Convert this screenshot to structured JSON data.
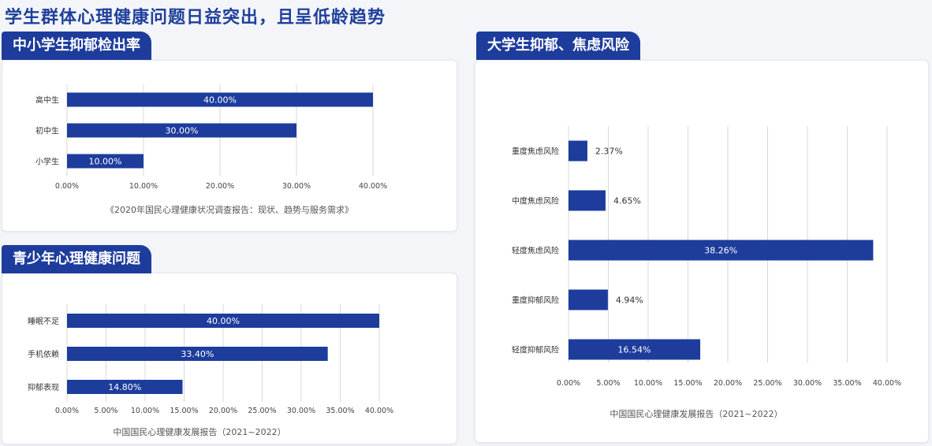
{
  "page": {
    "title": "学生群体心理健康问题日益突出，且呈低龄趋势",
    "colors": {
      "accent": "#1d3c9c",
      "bar": "#1d3c9c",
      "bar_label": "#ffffff",
      "text": "#333333",
      "grid": "#d9d9d9"
    }
  },
  "panels": [
    {
      "title": "中小学生抑郁检出率",
      "source": "《2020年国民心理健康状况调查报告：现状、趋势与服务需求》"
    },
    {
      "title": "青少年心理健康问题",
      "source": "中国国民心理健康发展报告（2021~2022）"
    },
    {
      "title": "大学生抑郁、焦虑风险",
      "source": "中国国民心理健康发展报告（2021~2022）"
    }
  ],
  "chart_data": [
    {
      "type": "bar",
      "orientation": "horizontal",
      "categories": [
        "高中生",
        "初中生",
        "小学生"
      ],
      "values": [
        40.0,
        30.0,
        10.0
      ],
      "value_labels": [
        "40.00%",
        "30.00%",
        "10.00%"
      ],
      "xlim": [
        0,
        40
      ],
      "xticks": [
        "0.00%",
        "10.00%",
        "20.00%",
        "30.00%",
        "40.00%"
      ],
      "grid": true
    },
    {
      "type": "bar",
      "orientation": "horizontal",
      "categories": [
        "睡眠不足",
        "手机依赖",
        "抑郁表现"
      ],
      "values": [
        40.0,
        33.4,
        14.8
      ],
      "value_labels": [
        "40.00%",
        "33.40%",
        "14.80%"
      ],
      "xlim": [
        0,
        40
      ],
      "xticks": [
        "0.00%",
        "5.00%",
        "10.00%",
        "15.00%",
        "20.00%",
        "25.00%",
        "30.00%",
        "35.00%",
        "40.00%"
      ],
      "grid": true
    },
    {
      "type": "bar",
      "orientation": "horizontal",
      "categories": [
        "重度焦虑风险",
        "中度焦虑风险",
        "轻度焦虑风险",
        "重度抑郁风险",
        "轻度抑郁风险"
      ],
      "values": [
        2.37,
        4.65,
        38.26,
        4.94,
        16.54
      ],
      "value_labels": [
        "2.37%",
        "4.65%",
        "38.26%",
        "4.94%",
        "16.54%"
      ],
      "xlim": [
        0,
        40
      ],
      "xticks": [
        "0.00%",
        "5.00%",
        "10.00%",
        "15.00%",
        "20.00%",
        "25.00%",
        "30.00%",
        "35.00%",
        "40.00%"
      ],
      "grid": true
    }
  ]
}
